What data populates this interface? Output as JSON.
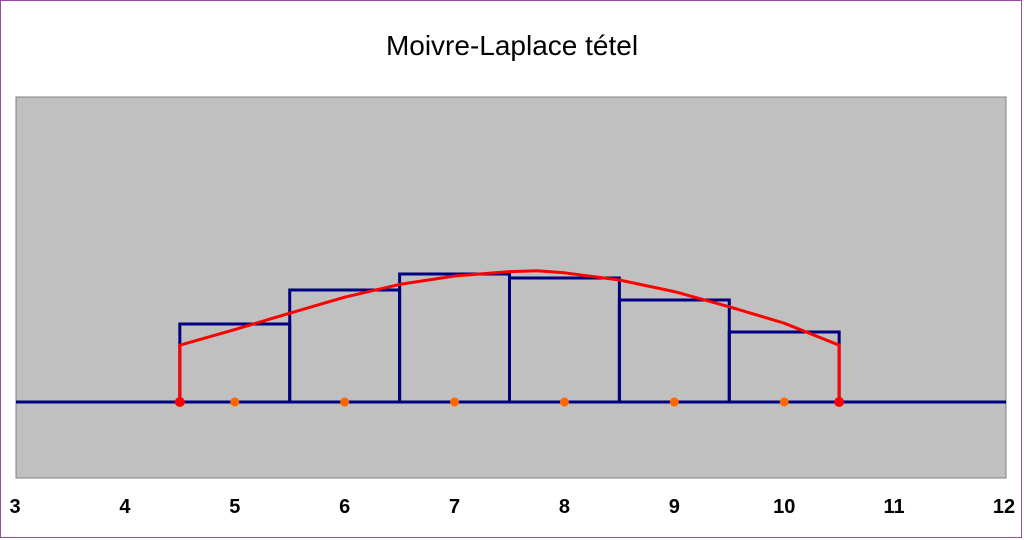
{
  "chart_data": {
    "type": "bar",
    "title": "Moivre-Laplace tétel",
    "xlim": [
      3,
      12
    ],
    "ylim": [
      0,
      1
    ],
    "x_ticks": [
      3,
      4,
      5,
      6,
      7,
      8,
      9,
      10,
      11,
      12
    ],
    "histogram": {
      "bin_edges": [
        4.5,
        5.5,
        6.5,
        7.5,
        8.5,
        9.5,
        10.5
      ],
      "heights": [
        0.195,
        0.28,
        0.32,
        0.31,
        0.255,
        0.175
      ],
      "color": "#000080"
    },
    "curve": {
      "color": "#ff0000",
      "x": [
        4.5,
        5.0,
        5.5,
        6.0,
        6.5,
        7.0,
        7.5,
        7.75,
        8.0,
        8.5,
        9.0,
        9.5,
        10.0,
        10.5
      ],
      "y": [
        0.142,
        0.181,
        0.222,
        0.262,
        0.294,
        0.315,
        0.326,
        0.328,
        0.323,
        0.305,
        0.276,
        0.238,
        0.197,
        0.142
      ]
    },
    "baseline": {
      "y": 0,
      "color": "#000080"
    },
    "endpoint_markers": {
      "x": [
        4.5,
        10.5
      ],
      "color": "#ff0000"
    },
    "midpoint_markers": {
      "x": [
        5,
        6,
        7,
        8,
        9,
        10
      ],
      "color": "#ff6600"
    },
    "plot_background": "#c0c0c0",
    "grid": false,
    "legend": "none"
  }
}
